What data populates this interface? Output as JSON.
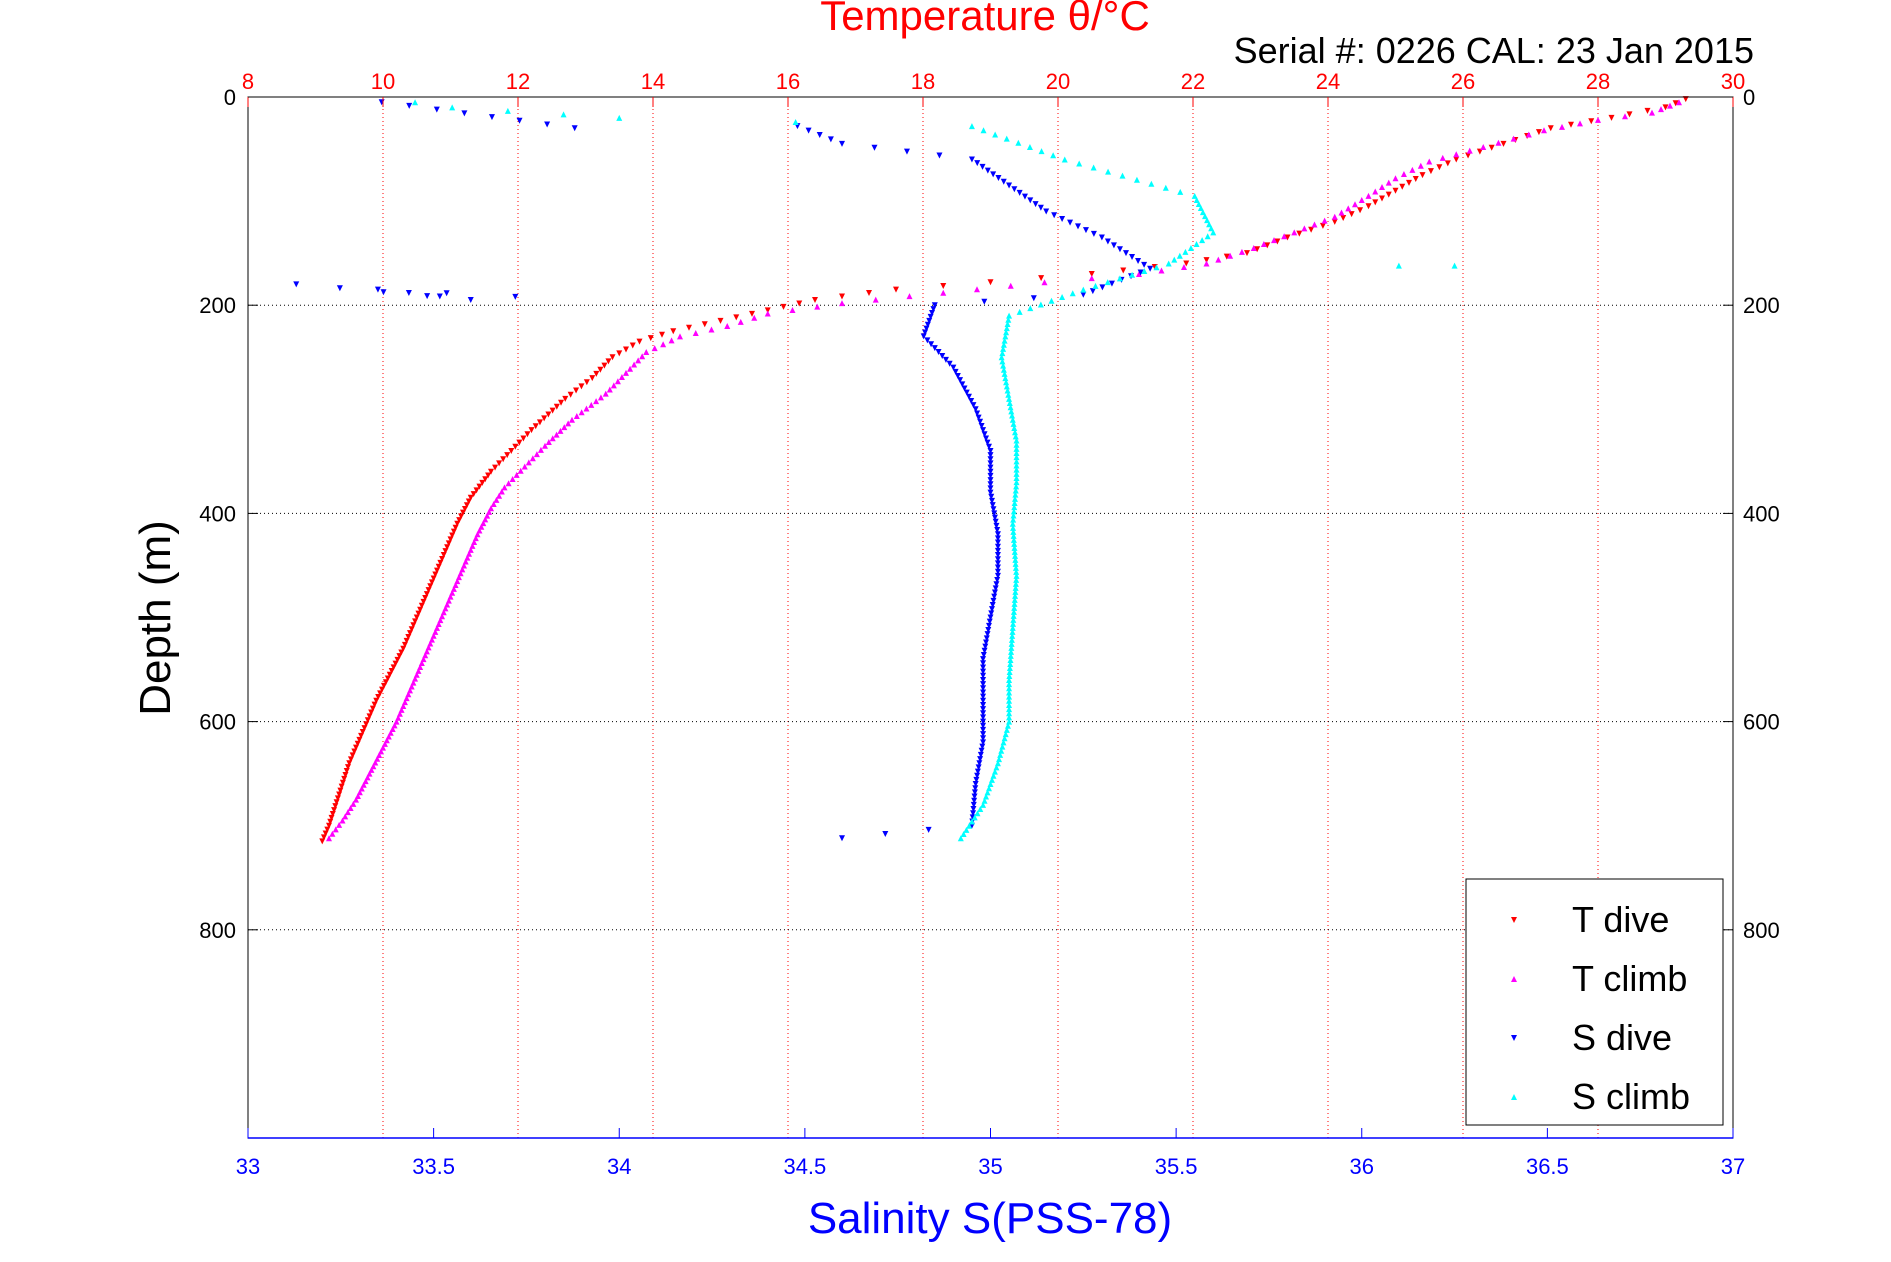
{
  "chart_data": {
    "type": "scatter",
    "title": "Temperature θ/°C",
    "annotation": "Serial #: 0226  CAL: 23 Jan 2015",
    "xlabel": "Salinity S(PSS-78)",
    "ylabel": "Depth (m)",
    "top_axis": {
      "label": "Temperature θ/°C",
      "range": [
        8,
        30
      ],
      "ticks": [
        "8",
        "10",
        "12",
        "14",
        "16",
        "18",
        "20",
        "22",
        "24",
        "26",
        "28",
        "30"
      ],
      "color": "#ff0000",
      "grid": true
    },
    "bottom_axis": {
      "label": "Salinity S(PSS-78)",
      "range": [
        33,
        37
      ],
      "ticks": [
        "33",
        "33.5",
        "34",
        "34.5",
        "35",
        "35.5",
        "36",
        "36.5",
        "37"
      ],
      "color": "#0000ff"
    },
    "y_axis": {
      "label": "Depth (m)",
      "range": [
        0,
        1000
      ],
      "reversed": true,
      "ticks": [
        "0",
        "200",
        "400",
        "600",
        "800"
      ],
      "grid": true
    },
    "legend": {
      "position": "bottom-right",
      "entries": [
        "T dive",
        "T climb",
        "S dive",
        "S climb"
      ]
    },
    "series": [
      {
        "name": "T dive",
        "axis": "temperature",
        "color": "#ff0000",
        "marker": "triangle-down",
        "points": [
          [
            29.3,
            2
          ],
          [
            29.0,
            10
          ],
          [
            28.2,
            20
          ],
          [
            27.3,
            30
          ],
          [
            26.6,
            45
          ],
          [
            25.9,
            60
          ],
          [
            25.4,
            75
          ],
          [
            25.0,
            90
          ],
          [
            24.6,
            105
          ],
          [
            24.1,
            120
          ],
          [
            23.4,
            135
          ],
          [
            22.8,
            150
          ],
          [
            21.9,
            160
          ],
          [
            20.5,
            170
          ],
          [
            19.0,
            178
          ],
          [
            17.6,
            185
          ],
          [
            16.4,
            195
          ],
          [
            15.7,
            205
          ],
          [
            15.0,
            215
          ],
          [
            14.3,
            225
          ],
          [
            13.8,
            235
          ],
          [
            13.4,
            250
          ],
          [
            13.1,
            270
          ],
          [
            12.7,
            290
          ],
          [
            12.2,
            320
          ],
          [
            11.9,
            340
          ],
          [
            11.6,
            360
          ],
          [
            11.3,
            385
          ],
          [
            11.1,
            410
          ],
          [
            10.9,
            440
          ],
          [
            10.7,
            470
          ],
          [
            10.5,
            500
          ],
          [
            10.3,
            530
          ],
          [
            10.1,
            555
          ],
          [
            9.9,
            580
          ],
          [
            9.7,
            610
          ],
          [
            9.5,
            640
          ],
          [
            9.35,
            670
          ],
          [
            9.2,
            700
          ],
          [
            9.1,
            715
          ]
        ]
      },
      {
        "name": "T climb",
        "axis": "temperature",
        "color": "#ff00ff",
        "marker": "triangle-up",
        "points": [
          [
            29.2,
            5
          ],
          [
            28.8,
            15
          ],
          [
            28.0,
            22
          ],
          [
            27.2,
            32
          ],
          [
            26.3,
            48
          ],
          [
            25.5,
            62
          ],
          [
            25.0,
            78
          ],
          [
            24.6,
            95
          ],
          [
            24.1,
            115
          ],
          [
            23.5,
            130
          ],
          [
            22.9,
            145
          ],
          [
            22.2,
            160
          ],
          [
            21.2,
            170
          ],
          [
            19.8,
            178
          ],
          [
            18.3,
            188
          ],
          [
            16.8,
            198
          ],
          [
            15.7,
            208
          ],
          [
            15.1,
            220
          ],
          [
            14.4,
            230
          ],
          [
            13.9,
            245
          ],
          [
            13.6,
            265
          ],
          [
            13.3,
            285
          ],
          [
            12.8,
            310
          ],
          [
            12.4,
            335
          ],
          [
            12.1,
            355
          ],
          [
            11.8,
            375
          ],
          [
            11.6,
            395
          ],
          [
            11.4,
            420
          ],
          [
            11.2,
            450
          ],
          [
            11.0,
            480
          ],
          [
            10.8,
            510
          ],
          [
            10.6,
            540
          ],
          [
            10.4,
            570
          ],
          [
            10.2,
            600
          ],
          [
            10.0,
            625
          ],
          [
            9.8,
            650
          ],
          [
            9.6,
            675
          ],
          [
            9.4,
            695
          ],
          [
            9.2,
            712
          ]
        ]
      },
      {
        "name": "S dive",
        "axis": "salinity",
        "color": "#0000ff",
        "marker": "triangle-down",
        "points": [
          [
            33.36,
            5
          ],
          [
            33.88,
            30
          ],
          [
            34.48,
            28
          ],
          [
            34.6,
            45
          ],
          [
            34.95,
            60
          ],
          [
            35.05,
            85
          ],
          [
            35.15,
            110
          ],
          [
            35.3,
            135
          ],
          [
            35.43,
            165
          ],
          [
            35.25,
            190
          ],
          [
            34.85,
            200
          ],
          [
            34.82,
            230
          ],
          [
            34.9,
            260
          ],
          [
            34.96,
            300
          ],
          [
            35.0,
            340
          ],
          [
            35.0,
            380
          ],
          [
            35.02,
            420
          ],
          [
            35.02,
            460
          ],
          [
            35.0,
            500
          ],
          [
            34.98,
            540
          ],
          [
            34.98,
            580
          ],
          [
            34.98,
            620
          ],
          [
            34.96,
            660
          ],
          [
            34.95,
            700
          ],
          [
            34.6,
            712
          ],
          [
            33.13,
            180
          ],
          [
            33.6,
            195
          ],
          [
            33.35,
            185
          ],
          [
            33.72,
            192
          ]
        ]
      },
      {
        "name": "S climb",
        "axis": "salinity",
        "color": "#00ffff",
        "marker": "triangle-up",
        "points": [
          [
            33.45,
            5
          ],
          [
            33.55,
            10
          ],
          [
            34.0,
            20
          ],
          [
            34.95,
            28
          ],
          [
            35.2,
            60
          ],
          [
            35.55,
            95
          ],
          [
            35.6,
            130
          ],
          [
            35.48,
            160
          ],
          [
            35.25,
            185
          ],
          [
            35.05,
            210
          ],
          [
            35.03,
            250
          ],
          [
            35.05,
            290
          ],
          [
            35.07,
            330
          ],
          [
            35.07,
            370
          ],
          [
            35.06,
            410
          ],
          [
            35.07,
            460
          ],
          [
            35.06,
            510
          ],
          [
            35.05,
            560
          ],
          [
            35.05,
            600
          ],
          [
            35.02,
            640
          ],
          [
            34.98,
            680
          ],
          [
            34.92,
            712
          ],
          [
            36.1,
            162
          ],
          [
            36.25,
            162
          ]
        ]
      }
    ]
  }
}
